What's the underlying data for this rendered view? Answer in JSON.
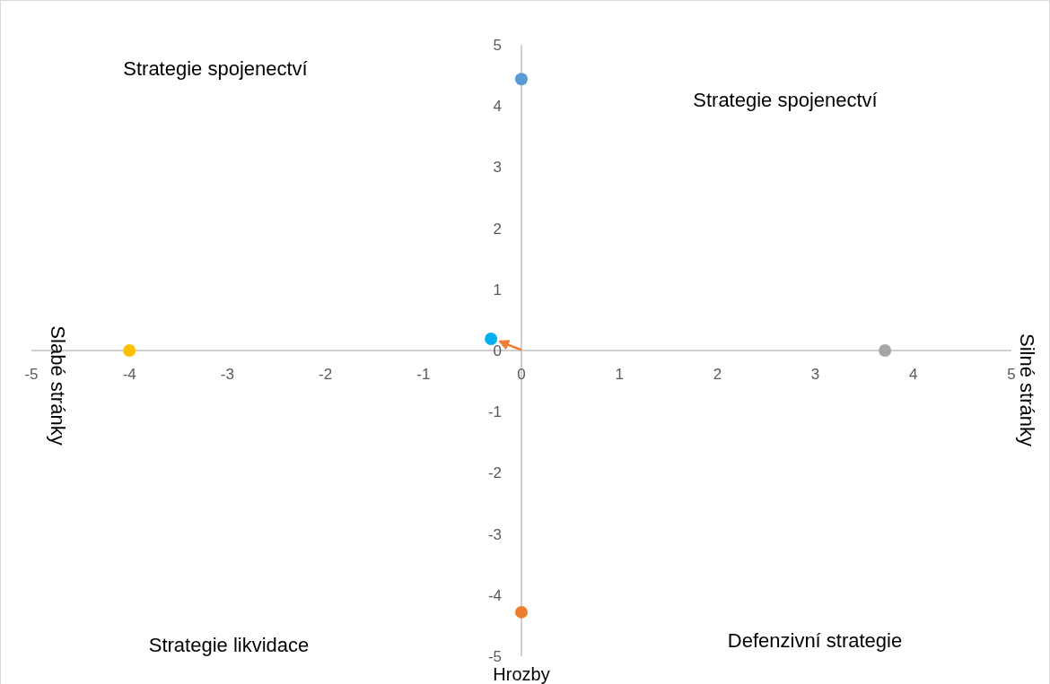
{
  "chart_data": {
    "type": "scatter",
    "xlabel": "Hrozby",
    "annotations": [
      "Strategie spojenectví",
      "Strategie spojenectví",
      "Strategie likvidace",
      "Defenzivní strategie",
      "Slabé stránky",
      "Silné stránky"
    ],
    "xlim": [
      -5,
      5
    ],
    "xticks": [
      -5,
      -4,
      -3,
      -2,
      -1,
      0,
      1,
      2,
      3,
      4,
      5
    ],
    "ylim": [
      -5,
      5
    ],
    "yticks": [
      -5,
      -4,
      -3,
      -2,
      -1,
      0,
      1,
      2,
      3,
      4,
      5
    ],
    "marker": "circle",
    "series": [
      {
        "x": [
          0,
          3.71,
          -4,
          0,
          -0.31
        ],
        "values": [
          4.44,
          0,
          0,
          -4.28,
          0.19
        ],
        "colors": [
          "#5b9bd5",
          "#a5a5a5",
          "#ffc000",
          "#ed7d31",
          "#00b0f0"
        ]
      }
    ]
  }
}
